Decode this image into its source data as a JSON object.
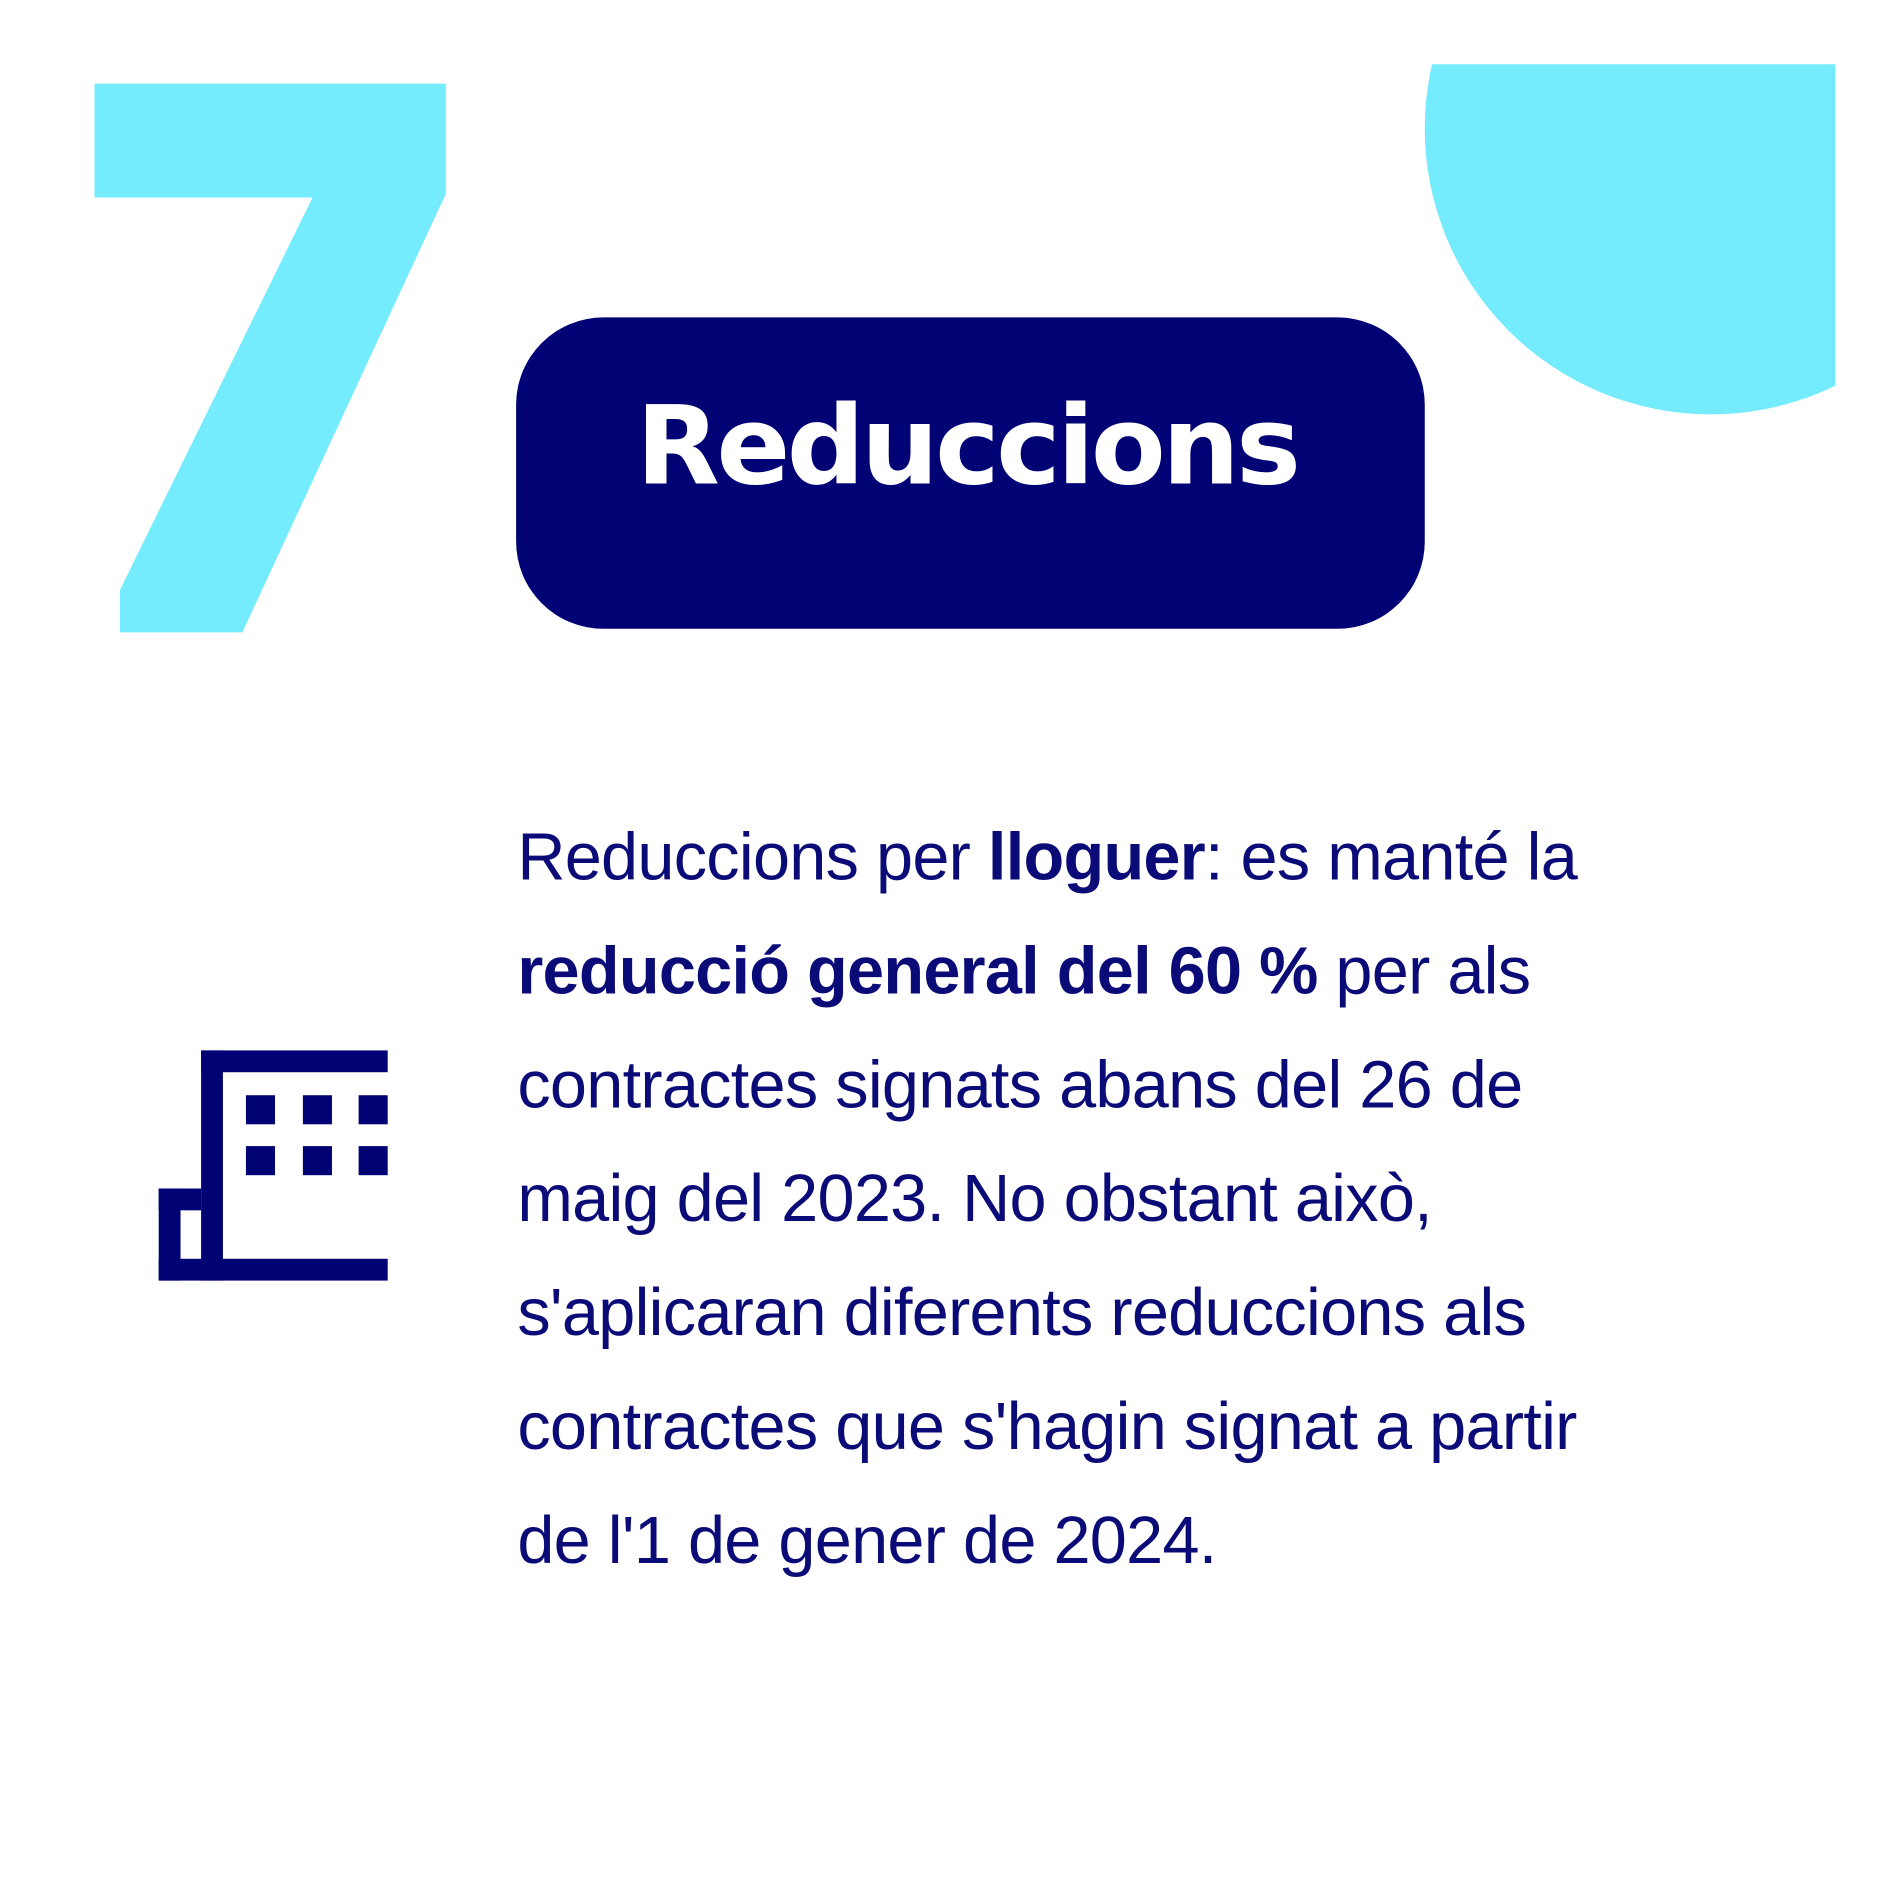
{
  "colors": {
    "accent": "#75ecfd",
    "navy": "#010273",
    "text": "#0b0b78",
    "background": "#ffffff"
  },
  "number_graphic": "7",
  "title": "Reduccions",
  "icon": "building-icon",
  "body": {
    "lines": [
      [
        {
          "t": "Reduccions per ",
          "b": false
        },
        {
          "t": "lloguer",
          "b": true
        },
        {
          "t": ": es manté la",
          "b": false
        }
      ],
      [
        {
          "t": "reducció general del 60 %",
          "b": true
        },
        {
          "t": " per als",
          "b": false
        }
      ],
      [
        {
          "t": "contractes signats abans del 26 de",
          "b": false
        }
      ],
      [
        {
          "t": "maig del 2023. No obstant això,",
          "b": false
        }
      ],
      [
        {
          "t": "s'aplicaran diferents reduccions als",
          "b": false
        }
      ],
      [
        {
          "t": "contractes que s'hagin signat a partir",
          "b": false
        }
      ],
      [
        {
          "t": "de l'1 de gener de 2024.",
          "b": false
        }
      ]
    ]
  }
}
